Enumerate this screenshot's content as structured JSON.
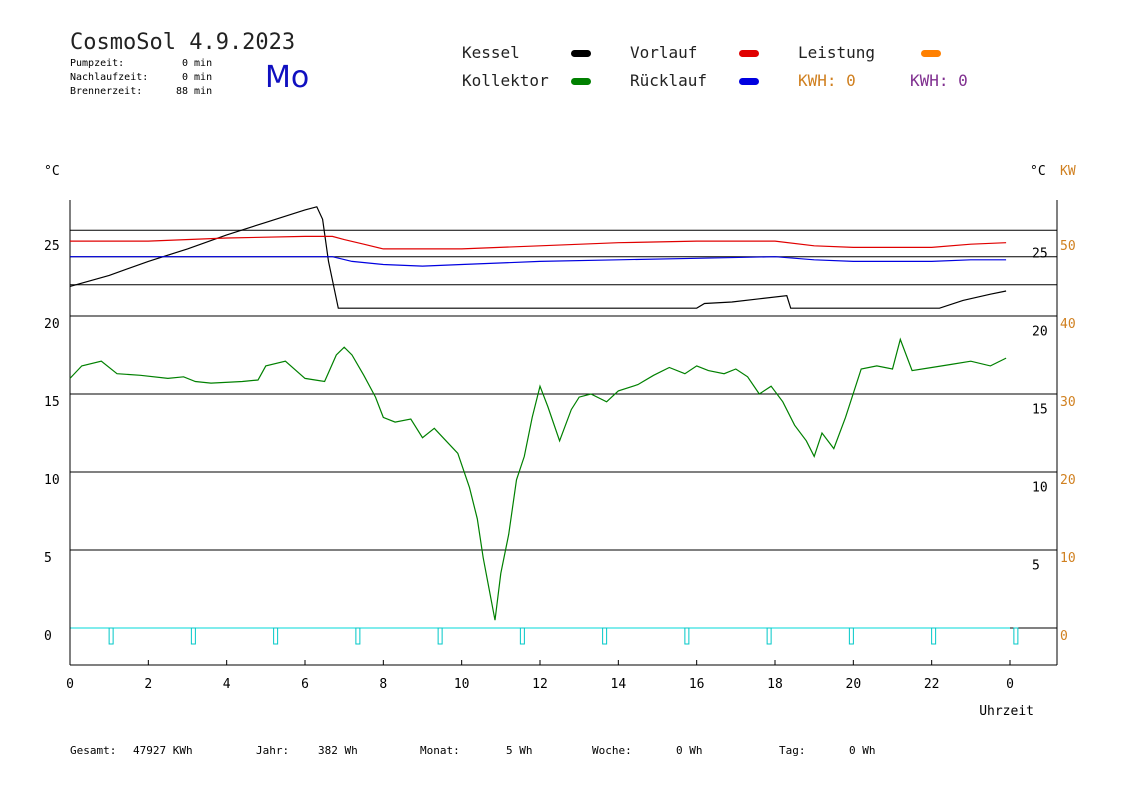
{
  "header": {
    "title": "CosmoSol 4.9.2023",
    "weekday": "Mo",
    "stats": [
      {
        "label": "Pumpzeit:",
        "value": "0 min"
      },
      {
        "label": "Nachlaufzeit:",
        "value": "0 min"
      },
      {
        "label": "Brennerzeit:",
        "value": "88 min"
      }
    ]
  },
  "legend": {
    "items": [
      {
        "label": "Kessel",
        "color": "#000000"
      },
      {
        "label": "Kollektor",
        "color": "#008000"
      },
      {
        "label": "Vorlauf",
        "color": "#e00000"
      },
      {
        "label": "Rücklauf",
        "color": "#0000e0"
      },
      {
        "label": "Leistung",
        "color": "#ff8000"
      }
    ],
    "kwh_orange": "KWH: 0",
    "kwh_purple": "KWH: 0",
    "orange": "#d08020",
    "purple": "#803090"
  },
  "footer": {
    "items": [
      {
        "label": "Gesamt:",
        "value": "47927 KWh"
      },
      {
        "label": "Jahr:",
        "value": "382 Wh"
      },
      {
        "label": "Monat:",
        "value": "5 Wh"
      },
      {
        "label": "Woche:",
        "value": "0 Wh"
      },
      {
        "label": "Tag:",
        "value": "0 Wh"
      }
    ]
  },
  "chart_data": {
    "type": "line",
    "xlabel": "Uhrzeit",
    "x_ticks": [
      "0",
      "2",
      "4",
      "6",
      "8",
      "10",
      "12",
      "14",
      "16",
      "18",
      "20",
      "22",
      "0"
    ],
    "xlim": [
      0,
      24
    ],
    "ylim": [
      0,
      27
    ],
    "left_unit": "°C",
    "right_unit": "°C",
    "right_unit2": "KW",
    "left_ticks": [
      "0",
      "5",
      "10",
      "15",
      "20",
      "25"
    ],
    "right_ticks_black": [
      {
        "label": "5",
        "y": 4
      },
      {
        "label": "10",
        "y": 9
      },
      {
        "label": "15",
        "y": 14
      },
      {
        "label": "20",
        "y": 19
      },
      {
        "label": "25",
        "y": 24
      }
    ],
    "right_ticks_orange": [
      "0",
      "10",
      "20",
      "30",
      "40",
      "50"
    ],
    "grid_y": [
      5,
      10,
      15,
      20,
      22,
      23.8,
      25.5
    ],
    "series": [
      {
        "name": "Kessel",
        "color": "#000000",
        "x": [
          0,
          1,
          2,
          3,
          4,
          5,
          6,
          6.3,
          6.45,
          6.6,
          6.85,
          8,
          10,
          12,
          14,
          16,
          16.2,
          16.9,
          17.6,
          18.3,
          18.4,
          19,
          20,
          21,
          22.2,
          22.8,
          23.5,
          23.9
        ],
        "y": [
          21.9,
          22.6,
          23.5,
          24.3,
          25.2,
          26.0,
          26.8,
          27.0,
          26.2,
          23.5,
          20.5,
          20.5,
          20.5,
          20.5,
          20.5,
          20.5,
          20.8,
          20.9,
          21.1,
          21.3,
          20.5,
          20.5,
          20.5,
          20.5,
          20.5,
          21.0,
          21.4,
          21.6
        ]
      },
      {
        "name": "Vorlauf",
        "color": "#e00000",
        "x": [
          0,
          2,
          4,
          6,
          6.7,
          7,
          7.5,
          8,
          9,
          10,
          12,
          14,
          16,
          18,
          19,
          20,
          22,
          23,
          23.9
        ],
        "y": [
          24.8,
          24.8,
          25.0,
          25.1,
          25.1,
          24.9,
          24.6,
          24.3,
          24.3,
          24.3,
          24.5,
          24.7,
          24.8,
          24.8,
          24.5,
          24.4,
          24.4,
          24.6,
          24.7
        ]
      },
      {
        "name": "Rücklauf",
        "color": "#0000e0",
        "x": [
          0,
          2,
          4,
          6,
          6.7,
          7.2,
          8,
          9,
          10,
          12,
          14,
          16,
          18,
          19,
          20,
          22,
          23,
          23.9
        ],
        "y": [
          23.8,
          23.8,
          23.8,
          23.8,
          23.8,
          23.5,
          23.3,
          23.2,
          23.3,
          23.5,
          23.6,
          23.7,
          23.8,
          23.6,
          23.5,
          23.5,
          23.6,
          23.6
        ]
      },
      {
        "name": "Kollektor",
        "color": "#008000",
        "x": [
          0,
          0.3,
          0.8,
          1.2,
          1.8,
          2.5,
          2.9,
          3.2,
          3.6,
          4.4,
          4.8,
          5.0,
          5.5,
          6.0,
          6.5,
          6.8,
          7.0,
          7.2,
          7.5,
          7.8,
          8.0,
          8.3,
          8.7,
          9.0,
          9.3,
          9.6,
          9.9,
          10.2,
          10.4,
          10.55,
          10.7,
          10.85,
          11.0,
          11.2,
          11.4,
          11.6,
          11.8,
          12.0,
          12.2,
          12.5,
          12.8,
          13.0,
          13.3,
          13.7,
          14.0,
          14.5,
          14.9,
          15.3,
          15.7,
          16.0,
          16.3,
          16.7,
          17.0,
          17.3,
          17.6,
          17.9,
          18.2,
          18.5,
          18.8,
          19.0,
          19.2,
          19.5,
          19.8,
          20.2,
          20.6,
          21.0,
          21.2,
          21.5,
          22.0,
          22.5,
          23.0,
          23.5,
          23.9
        ],
        "y": [
          16.0,
          16.8,
          17.1,
          16.3,
          16.2,
          16.0,
          16.1,
          15.8,
          15.7,
          15.8,
          15.9,
          16.8,
          17.1,
          16.0,
          15.8,
          17.5,
          18.0,
          17.5,
          16.2,
          14.8,
          13.5,
          13.2,
          13.4,
          12.2,
          12.8,
          12.0,
          11.2,
          9.0,
          7.0,
          4.5,
          2.5,
          0.5,
          3.5,
          6.0,
          9.5,
          11.0,
          13.5,
          15.5,
          14.2,
          12.0,
          14.0,
          14.8,
          15.0,
          14.5,
          15.2,
          15.6,
          16.2,
          16.7,
          16.3,
          16.8,
          16.5,
          16.3,
          16.6,
          16.1,
          15.0,
          15.5,
          14.5,
          13.0,
          12.0,
          11.0,
          12.5,
          11.5,
          13.5,
          16.6,
          16.8,
          16.6,
          18.5,
          16.5,
          16.7,
          16.9,
          17.1,
          16.8,
          17.3
        ]
      }
    ]
  }
}
